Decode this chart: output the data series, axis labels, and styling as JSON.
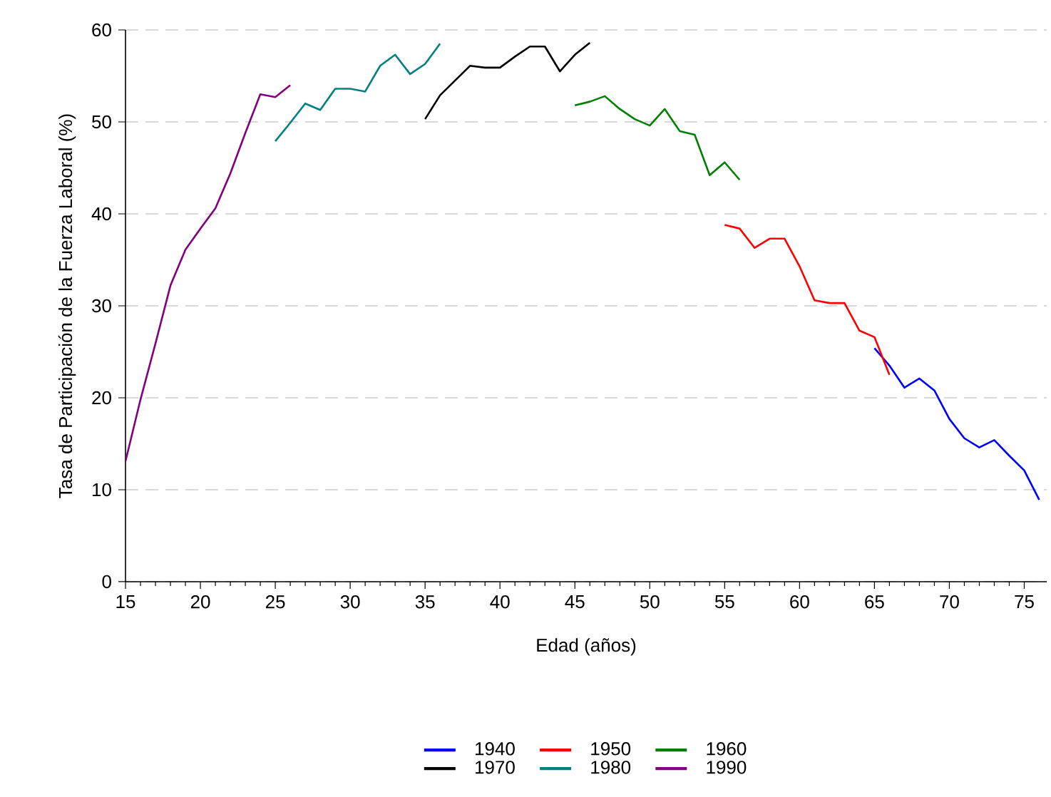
{
  "chart_data": {
    "type": "line",
    "xlabel": "Edad (años)",
    "ylabel": "Tasa de Participación de la Fuerza Laboral (%)",
    "xlim": [
      15,
      76.5
    ],
    "ylim": [
      0,
      60
    ],
    "xticks": [
      15,
      20,
      25,
      30,
      35,
      40,
      45,
      50,
      55,
      60,
      65,
      70,
      75
    ],
    "yticks": [
      0,
      10,
      20,
      30,
      40,
      50,
      60
    ],
    "grid": "y",
    "legend": "bottom",
    "marker": "none",
    "line_style": "solid",
    "series": [
      {
        "name": "1940",
        "color": "#0000ff",
        "x": [
          65,
          66,
          67,
          68,
          69,
          70,
          71,
          72,
          73,
          74,
          75,
          76
        ],
        "values": [
          25.4,
          23.5,
          21.1,
          22.1,
          20.8,
          17.7,
          15.6,
          14.6,
          15.4,
          13.7,
          12.1,
          8.9
        ]
      },
      {
        "name": "1950",
        "color": "#ff0000",
        "x": [
          55,
          56,
          57,
          58,
          59,
          60,
          61,
          62,
          63,
          64,
          65,
          66
        ],
        "values": [
          38.8,
          38.4,
          36.3,
          37.3,
          37.3,
          34.3,
          30.6,
          30.3,
          30.3,
          27.3,
          26.6,
          22.5
        ]
      },
      {
        "name": "1960",
        "color": "#008000",
        "x": [
          45,
          46,
          47,
          48,
          49,
          50,
          51,
          52,
          53,
          54,
          55,
          56
        ],
        "values": [
          51.8,
          52.2,
          52.8,
          51.4,
          50.3,
          49.6,
          51.4,
          49.0,
          48.6,
          44.2,
          45.6,
          43.7
        ]
      },
      {
        "name": "1970",
        "color": "#000000",
        "x": [
          35,
          36,
          37,
          38,
          39,
          40,
          41,
          42,
          43,
          44,
          45,
          46
        ],
        "values": [
          50.3,
          52.9,
          54.5,
          56.1,
          55.9,
          55.9,
          57.1,
          58.2,
          58.2,
          55.5,
          57.3,
          58.6
        ]
      },
      {
        "name": "1980",
        "color": "#008080",
        "x": [
          25,
          26,
          27,
          28,
          29,
          30,
          31,
          32,
          33,
          34,
          35,
          36
        ],
        "values": [
          47.9,
          49.9,
          52.0,
          51.3,
          53.6,
          53.6,
          53.3,
          56.1,
          57.3,
          55.2,
          56.3,
          58.5
        ]
      },
      {
        "name": "1990",
        "color": "#800080",
        "x": [
          15,
          16,
          17,
          18,
          19,
          20,
          21,
          22,
          23,
          24,
          25,
          26
        ],
        "values": [
          13.1,
          19.8,
          25.9,
          32.2,
          36.1,
          38.4,
          40.6,
          44.4,
          48.8,
          53.0,
          52.7,
          54.0
        ]
      }
    ]
  }
}
